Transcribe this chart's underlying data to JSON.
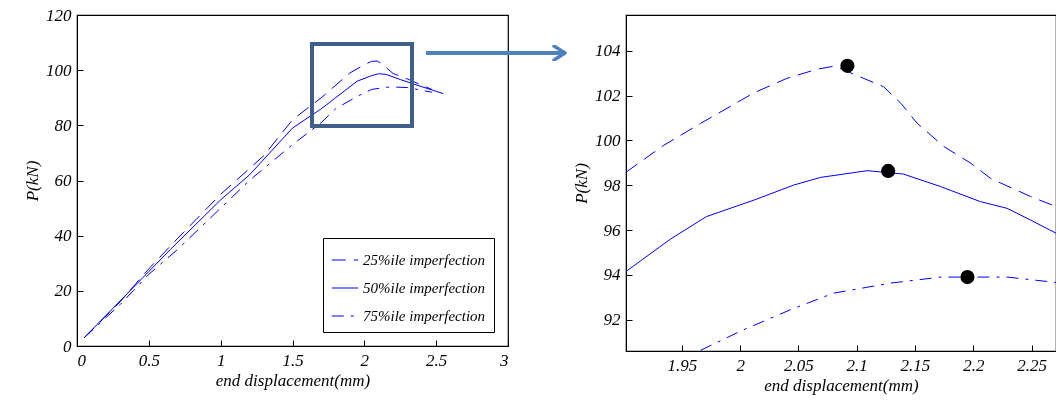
{
  "chart_data": [
    {
      "type": "line",
      "xlabel": "end displacement(mm)",
      "ylabel": "P(kN)",
      "xlim": [
        0,
        3
      ],
      "ylim": [
        0,
        120
      ],
      "xticks": [
        0,
        0.5,
        1,
        1.5,
        2,
        2.5,
        3
      ],
      "yticks": [
        0,
        20,
        40,
        60,
        80,
        100,
        120
      ],
      "legend": "bottom right",
      "series": [
        {
          "name": "25%ile imperfection",
          "color": "#0000ff",
          "line_style": "dashed",
          "x": [
            0.05,
            0.3,
            0.5,
            0.7,
            1.0,
            1.3,
            1.5,
            1.7,
            1.9,
            2.0,
            2.05,
            2.09,
            2.11,
            2.15,
            2.2,
            2.3,
            2.47
          ],
          "values": [
            3,
            16,
            28,
            39,
            55,
            69,
            82,
            90,
            99,
            102,
            103.2,
            103.3,
            102.7,
            101,
            98.8,
            96.8,
            93
          ]
        },
        {
          "name": "50%ile imperfection",
          "color": "#0000ff",
          "line_style": "solid",
          "x": [
            0.05,
            0.2,
            0.5,
            0.65,
            1.0,
            1.2,
            1.5,
            1.7,
            1.8,
            1.95,
            2.05,
            2.1,
            2.15,
            2.25,
            2.4,
            2.55
          ],
          "values": [
            3,
            11,
            27,
            35,
            53,
            62,
            79,
            86,
            90,
            96,
            98,
            98.7,
            98.5,
            96.6,
            94,
            91.5
          ]
        },
        {
          "name": "75%ile imperfection",
          "color": "#0000ff",
          "line_style": "dotted",
          "x": [
            0.05,
            0.3,
            0.5,
            0.7,
            1.0,
            1.2,
            1.5,
            1.7,
            1.8,
            1.95,
            2.05,
            2.15,
            2.2,
            2.3,
            2.47
          ],
          "values": [
            3,
            15,
            26,
            35,
            50,
            60,
            73,
            81,
            86,
            90.5,
            93,
            93.8,
            93.9,
            93.7,
            92
          ]
        }
      ]
    },
    {
      "type": "line",
      "xlabel": "end displacement(mm)",
      "ylabel": "P(kN)",
      "xlim": [
        1.902,
        2.271
      ],
      "ylim": [
        90.6,
        105.6
      ],
      "xticks": [
        1.95,
        2,
        2.05,
        2.1,
        2.15,
        2.2,
        2.25
      ],
      "yticks": [
        92,
        94,
        96,
        98,
        100,
        102,
        104
      ],
      "series": [
        {
          "color": "#0000ff",
          "line_style": "dashed",
          "x": [
            1.902,
            1.934,
            1.966,
            2.012,
            2.04,
            2.066,
            2.081,
            2.106,
            2.123,
            2.138,
            2.152,
            2.175,
            2.198,
            2.215,
            2.249,
            2.271
          ],
          "values": [
            98.58,
            99.77,
            100.76,
            102.13,
            102.77,
            103.18,
            103.32,
            102.77,
            102.4,
            101.65,
            100.76,
            99.72,
            98.98,
            98.3,
            97.5,
            97.05
          ]
        },
        {
          "color": "#0000ff",
          "line_style": "solid",
          "x": [
            1.902,
            1.94,
            1.971,
            2.012,
            2.046,
            2.069,
            2.109,
            2.14,
            2.172,
            2.206,
            2.229,
            2.249,
            2.271
          ],
          "values": [
            94.15,
            95.59,
            96.6,
            97.34,
            98.01,
            98.35,
            98.65,
            98.5,
            97.94,
            97.27,
            96.97,
            96.45,
            95.86
          ]
        },
        {
          "color": "#0000ff",
          "line_style": "dotted",
          "x": [
            1.966,
            2.0,
            2.043,
            2.08,
            2.129,
            2.172,
            2.195,
            2.229,
            2.271
          ],
          "values": [
            90.63,
            91.48,
            92.44,
            93.18,
            93.63,
            93.9,
            93.9,
            93.9,
            93.66
          ]
        },
        {
          "type": "scatter",
          "color": "#000000",
          "marker": "circle",
          "x": [
            2.092,
            2.127,
            2.195
          ],
          "values": [
            103.33,
            98.64,
            93.9
          ]
        }
      ]
    }
  ]
}
